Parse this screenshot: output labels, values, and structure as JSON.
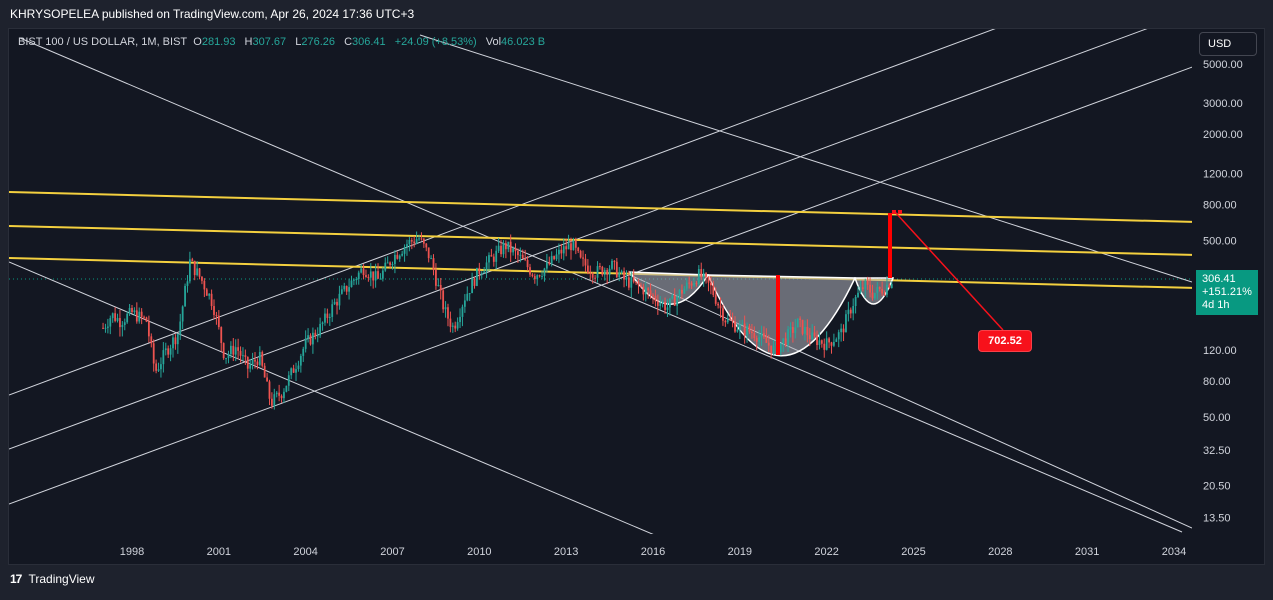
{
  "header": {
    "publisher_line": "KHRYSOPELEA published on TradingView.com, Apr 26, 2024 17:36 UTC+3"
  },
  "legend": {
    "symbol": "BIST 100 / US DOLLAR, 1M, BIST",
    "o_label": "O",
    "o_value": "281.93",
    "h_label": "H",
    "h_value": "307.67",
    "l_label": "L",
    "l_value": "276.26",
    "c_label": "C",
    "c_value": "306.41",
    "change": "+24.09 (+8.53%)",
    "vol_label": "Vol",
    "vol_value": "46.023 B"
  },
  "currency_button": "USD",
  "price_tag": {
    "price": "306.41",
    "change_pct": "+151.21%",
    "countdown": "4d 1h"
  },
  "target_label": "702.52",
  "footer": {
    "logo_text": "TradingView"
  },
  "colors": {
    "background": "#131722",
    "up": "#26a69a",
    "down": "#ef5350",
    "yellow_lines": "#f4d03f",
    "white_lines": "#d1d4dc",
    "target_red": "#f7111b",
    "price_tag_green": "#089981"
  },
  "chart_data": {
    "type": "candlestick",
    "title": "BIST 100 / US DOLLAR, 1M, BIST",
    "x_ticks": [
      "1998",
      "2001",
      "2004",
      "2007",
      "2010",
      "2013",
      "2016",
      "2019",
      "2022",
      "2025",
      "2028",
      "2031",
      "2034"
    ],
    "y_ticks": [
      "13.50",
      "20.50",
      "32.50",
      "50.00",
      "80.00",
      "120.00",
      "500.00",
      "800.00",
      "1200.00",
      "2000.00",
      "3000.00",
      "5000.00"
    ],
    "y_scale": "log",
    "last_price": 306.41,
    "target_price": 702.52,
    "series_path": [
      [
        1997.0,
        160
      ],
      [
        1997.3,
        190
      ],
      [
        1997.6,
        175
      ],
      [
        1998.0,
        195
      ],
      [
        1998.5,
        175
      ],
      [
        1998.8,
        90
      ],
      [
        1999.2,
        120
      ],
      [
        1999.6,
        150
      ],
      [
        2000.0,
        380
      ],
      [
        2000.4,
        300
      ],
      [
        2000.8,
        220
      ],
      [
        2001.2,
        110
      ],
      [
        2001.6,
        125
      ],
      [
        2002.0,
        95
      ],
      [
        2002.4,
        110
      ],
      [
        2002.8,
        60
      ],
      [
        2003.2,
        70
      ],
      [
        2003.6,
        95
      ],
      [
        2004.0,
        130
      ],
      [
        2004.5,
        160
      ],
      [
        2005.0,
        220
      ],
      [
        2005.5,
        280
      ],
      [
        2006.0,
        350
      ],
      [
        2006.5,
        300
      ],
      [
        2007.0,
        400
      ],
      [
        2007.5,
        480
      ],
      [
        2007.9,
        520
      ],
      [
        2008.3,
        400
      ],
      [
        2008.8,
        200
      ],
      [
        2009.1,
        160
      ],
      [
        2009.5,
        240
      ],
      [
        2010.0,
        340
      ],
      [
        2010.6,
        420
      ],
      [
        2010.9,
        470
      ],
      [
        2011.4,
        400
      ],
      [
        2011.9,
        320
      ],
      [
        2012.3,
        350
      ],
      [
        2012.8,
        430
      ],
      [
        2013.2,
        480
      ],
      [
        2013.5,
        380
      ],
      [
        2014.0,
        330
      ],
      [
        2014.6,
        360
      ],
      [
        2015.0,
        300
      ],
      [
        2015.6,
        270
      ],
      [
        2016.0,
        240
      ],
      [
        2016.5,
        210
      ],
      [
        2017.0,
        260
      ],
      [
        2017.6,
        320
      ],
      [
        2018.0,
        270
      ],
      [
        2018.5,
        180
      ],
      [
        2019.0,
        160
      ],
      [
        2019.5,
        150
      ],
      [
        2020.2,
        120
      ],
      [
        2020.6,
        140
      ],
      [
        2021.0,
        170
      ],
      [
        2021.5,
        140
      ],
      [
        2022.0,
        130
      ],
      [
        2022.5,
        150
      ],
      [
        2022.9,
        220
      ],
      [
        2023.3,
        280
      ],
      [
        2023.6,
        250
      ],
      [
        2024.0,
        270
      ],
      [
        2024.3,
        306
      ]
    ],
    "bar_color_up": "#26a69a",
    "bar_color_down": "#ef5350"
  }
}
